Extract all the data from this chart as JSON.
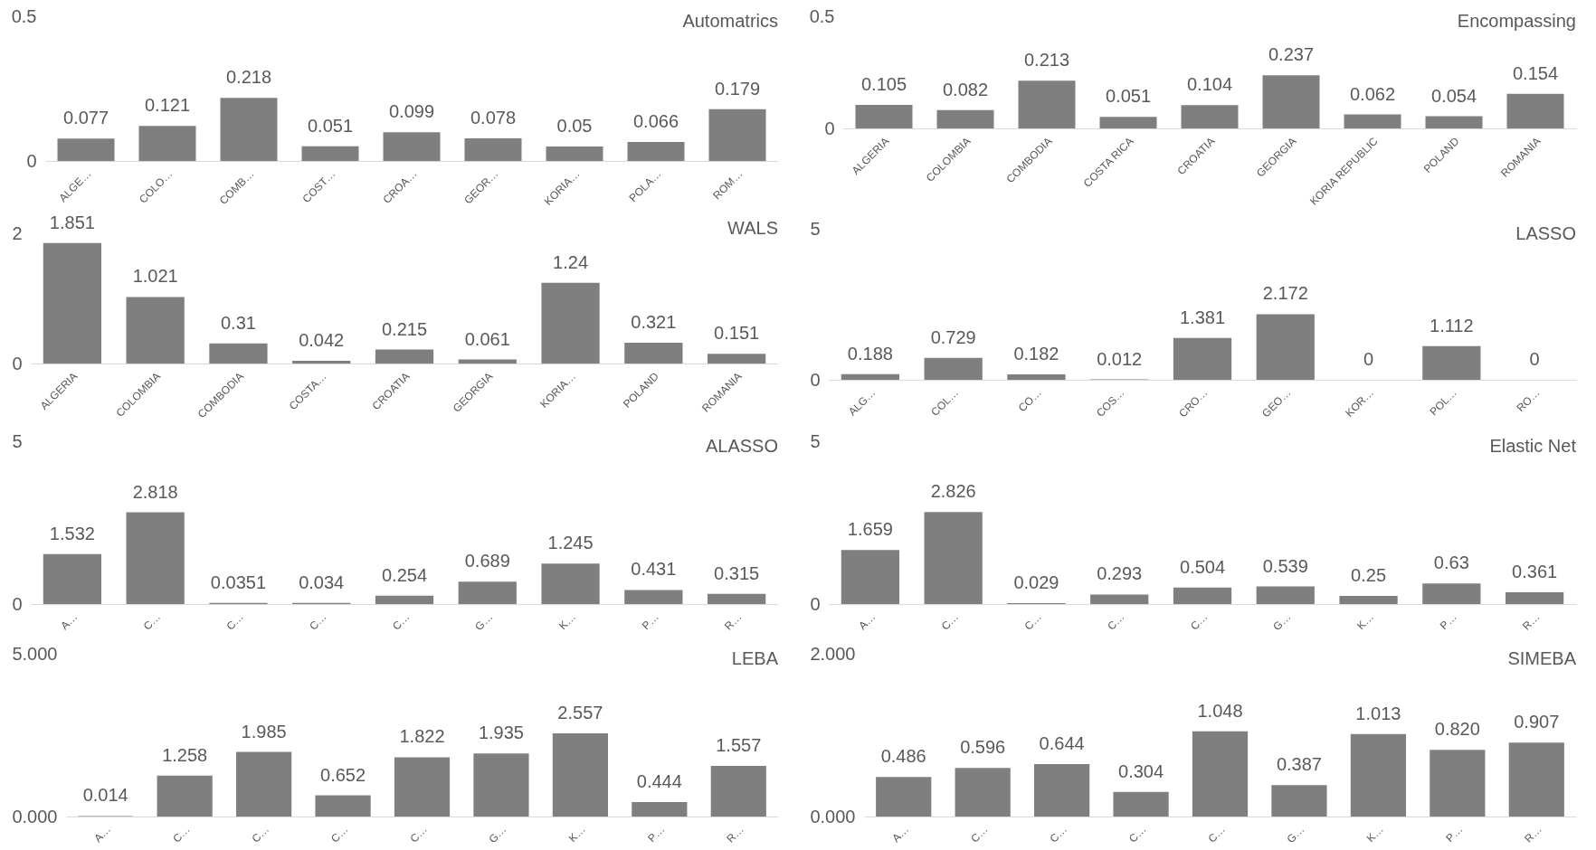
{
  "chart_data": [
    {
      "type": "bar",
      "title": "Automatrics",
      "categories": [
        "ALGE…",
        "COLO…",
        "COMB…",
        "COST…",
        "CROA…",
        "GEOR…",
        "KORIA…",
        "POLA…",
        "ROM…"
      ],
      "values": [
        0.077,
        0.121,
        0.218,
        0.051,
        0.099,
        0.078,
        0.05,
        0.066,
        0.179
      ],
      "color": "#7f7f7f",
      "ylim": [
        0,
        0.5
      ],
      "yticks": [
        0,
        0.5
      ],
      "data_labels": true
    },
    {
      "type": "bar",
      "title": "Encompassing",
      "categories": [
        "ALGERIA",
        "COLOMBIA",
        "COMBODIA",
        "COSTA RICA",
        "CROATIA",
        "GEORGIA",
        "KORIA REPUBLIC",
        "POLAND",
        "ROMANIA"
      ],
      "values": [
        0.105,
        0.082,
        0.213,
        0.051,
        0.104,
        0.237,
        0.062,
        0.054,
        0.154
      ],
      "color": "#7f7f7f",
      "ylim": [
        0,
        0.5
      ],
      "yticks": [
        0,
        0.5
      ],
      "data_labels": true
    },
    {
      "type": "bar",
      "title": "WALS",
      "categories": [
        "ALGERIA",
        "COLOMBIA",
        "COMBODIA",
        "COSTA…",
        "CROATIA",
        "GEORGIA",
        "KORIA…",
        "POLAND",
        "ROMANIA"
      ],
      "values": [
        1.851,
        1.021,
        0.31,
        0.042,
        0.215,
        0.061,
        1.24,
        0.321,
        0.151
      ],
      "color": "#7f7f7f",
      "ylim": [
        0,
        2
      ],
      "yticks": [
        0,
        2
      ],
      "data_labels": true
    },
    {
      "type": "bar",
      "title": "LASSO",
      "categories": [
        "ALG…",
        "COL…",
        "CO…",
        "COS…",
        "CRO…",
        "GEO…",
        "KOR…",
        "POL…",
        "RO…"
      ],
      "values": [
        0.188,
        0.729,
        0.182,
        0.012,
        1.381,
        2.172,
        0,
        1.112,
        0
      ],
      "color": "#7f7f7f",
      "ylim": [
        0,
        5
      ],
      "yticks": [
        0,
        5
      ],
      "data_labels": true
    },
    {
      "type": "bar",
      "title": "ALASSO",
      "categories": [
        "A…",
        "C…",
        "C…",
        "C…",
        "C…",
        "G…",
        "K…",
        "P…",
        "R…"
      ],
      "values": [
        1.532,
        2.818,
        0.0351,
        0.034,
        0.254,
        0.689,
        1.245,
        0.431,
        0.315
      ],
      "color": "#7f7f7f",
      "ylim": [
        0,
        5
      ],
      "yticks": [
        0,
        5
      ],
      "data_labels": true
    },
    {
      "type": "bar",
      "title": "Elastic Net",
      "categories": [
        "A…",
        "C…",
        "C…",
        "C…",
        "C…",
        "G…",
        "K…",
        "P…",
        "R…"
      ],
      "values": [
        1.659,
        2.826,
        0.029,
        0.293,
        0.504,
        0.539,
        0.25,
        0.63,
        0.361
      ],
      "color": "#7f7f7f",
      "ylim": [
        0,
        5
      ],
      "yticks": [
        0,
        5
      ],
      "data_labels": true
    },
    {
      "type": "bar",
      "title": "LEBA",
      "categories": [
        "A…",
        "C…",
        "C…",
        "C…",
        "C…",
        "G…",
        "K…",
        "P…",
        "R…"
      ],
      "values": [
        0.014,
        1.258,
        1.985,
        0.652,
        1.822,
        1.935,
        2.557,
        0.444,
        1.557
      ],
      "color": "#7f7f7f",
      "ylim": [
        0,
        5
      ],
      "yticks": [
        {
          "value": 0,
          "label": "0.000"
        },
        {
          "value": 5,
          "label": "5.000"
        }
      ],
      "data_labels": true
    },
    {
      "type": "bar",
      "title": "SIMEBA",
      "categories": [
        "A…",
        "C…",
        "C…",
        "C…",
        "C…",
        "G…",
        "K…",
        "P…",
        "R…"
      ],
      "values": [
        0.486,
        0.596,
        0.644,
        0.304,
        1.048,
        0.387,
        1.013,
        0.82,
        0.907
      ],
      "value_labels": [
        "0.486",
        "0.596",
        "0.644",
        "0.304",
        "1.048",
        "0.387",
        "1.013",
        "0.820",
        "0.907"
      ],
      "color": "#7f7f7f",
      "ylim": [
        0,
        2
      ],
      "yticks": [
        {
          "value": 0,
          "label": "0.000"
        },
        {
          "value": 2,
          "label": "2.000"
        }
      ]
    }
  ]
}
